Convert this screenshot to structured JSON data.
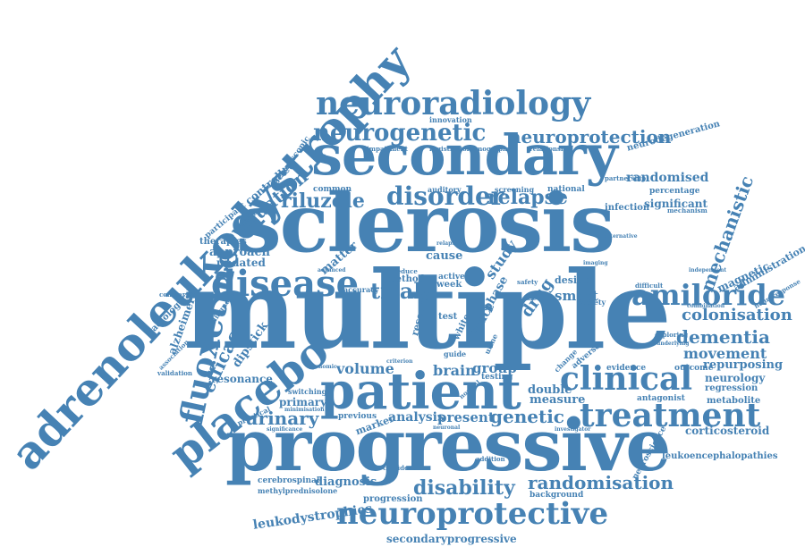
{
  "colors": {
    "word": "#4682b4",
    "background": "#ffffff"
  },
  "words": {
    "multiple": "multiple",
    "sclerosis": "sclerosis",
    "progressive": "progressive",
    "patient": "patient",
    "secondary": "secondary",
    "adrenoleukodystrophy": "adrenoleukodystrophy",
    "neuroradiology": "neuroradiology",
    "neurogenetic": "neurogenetic",
    "neuroprotection": "neuroprotection",
    "neuroprotective": "neuroprotective",
    "treatment": "treatment",
    "clinical": "clinical",
    "disease": "disease",
    "placebo": "placebo",
    "fluoxetine": "fluoxetine",
    "disorder": "disorder",
    "relapse": "relapse",
    "riluzole": "riluzole",
    "amiloride": "amiloride",
    "colonisation": "colonisation",
    "dementia": "dementia",
    "movement": "movement",
    "repurposing": "repurposing",
    "neurology": "neurology",
    "regression": "regression",
    "metabolite": "metabolite",
    "corticosteroid": "corticosteroid",
    "leukoencephalopathies": "leukoencephalopathies",
    "randomisation": "randomisation",
    "disability": "disability",
    "leukodystrophies": "leukodystrophies",
    "secondaryprogressive": "secondaryprogressive",
    "genetic": "genetic",
    "urinary": "urinary",
    "analysis": "analysis",
    "present": "present",
    "measure": "measure",
    "double": "double",
    "trial": "trial",
    "volume": "volume",
    "brain": "brain",
    "group": "group",
    "evaluation": "evaluation",
    "controlled": "controlled",
    "efficacy": "efficacy",
    "mechanistic": "mechanistic",
    "randomised": "randomised",
    "neurodegeneration": "neurodegeneration",
    "significant": "significant",
    "infection": "infection",
    "percentage": "percentage",
    "resonance": "resonance",
    "dipstick": "dipstick",
    "alzheimer": "alzheimer",
    "radiological": "radiological",
    "approach": "approach",
    "updated": "updated",
    "therapies": "therapies",
    "diagnosis": "diagnosis",
    "primary": "primary",
    "cerebrospinal": "cerebrospinal",
    "methylprednisolone": "methylprednisolone",
    "progression": "progression",
    "background": "background",
    "magnetic": "magnetic",
    "administration": "administration",
    "outcome": "outcome",
    "evidence": "evidence",
    "antagonist": "antagonist",
    "smart": "smart",
    "drug": "drug",
    "study": "study",
    "cause": "cause",
    "matter": "matter",
    "research": "research",
    "test": "test",
    "week": "week",
    "method": "method",
    "accuracy": "accuracy",
    "marker": "marker",
    "switching": "switching",
    "previous": "previous",
    "practical": "practical",
    "common": "common",
    "spectroscopic": "spectroscopic",
    "participant": "participant",
    "validation": "validation",
    "association": "association",
    "comparing": "comparing",
    "diagnose": "diagnose",
    "innovation": "innovation",
    "registration": "registration",
    "tomography": "tomography",
    "impairment": "impairment",
    "relationship": "relationship",
    "national": "national",
    "screening": "screening",
    "auditory": "auditory",
    "partnership": "partnership",
    "mechanism": "mechanism",
    "difficult": "difficult",
    "combination": "combination",
    "exploring": "exploring",
    "neuroresponse": "neuroresponse",
    "society": "society",
    "confidence": "confidence",
    "addition": "addition",
    "investigator": "investigator",
    "neuroscience": "neuroscience",
    "phase": "phase",
    "tract": "tract",
    "independent": "independent",
    "underlying": "underlying",
    "imaging": "imaging",
    "normal": "normal",
    "testing": "testing",
    "criterion": "criterion",
    "genomic": "genomic",
    "modifying": "modifying",
    "minimisation": "minimisation",
    "significance": "significance",
    "baseline": "baseline",
    "active": "active",
    "reduce": "reduce",
    "design": "design",
    "scale": "scale",
    "safety": "safety",
    "change": "change",
    "adverse": "adverse",
    "guide": "guide",
    "urine": "urine",
    "white": "white",
    "relapsing": "relapsing",
    "evaluate": "evaluate",
    "alternative": "alternative",
    "efficient": "efficient",
    "programme": "programme",
    "specificity": "specificity",
    "relevance": "relevance",
    "experience": "experience",
    "neurologist": "neurologist",
    "frequency": "frequency",
    "condition": "condition",
    "episode": "episode",
    "optimal": "optimal",
    "recruitment": "recruitment",
    "duration": "duration",
    "advanced": "advanced",
    "review": "review",
    "treatable": "treatable",
    "prior": "prior",
    "failure": "failure",
    "funding": "funding",
    "outcomes": "outcomes",
    "neuronal": "neuronal",
    "sensitivity": "sensitivity",
    "detection": "detection",
    "assessment": "assessment",
    "approval": "approval",
    "dose": "dose",
    "scan": "scan",
    "rate": "rate",
    "nerve": "nerve",
    "target": "target",
    "risk": "risk",
    "tool": "tool",
    "coherence": "coherence",
    "structural": "structural",
    "anniversary": "anniversary",
    "position": "position"
  }
}
